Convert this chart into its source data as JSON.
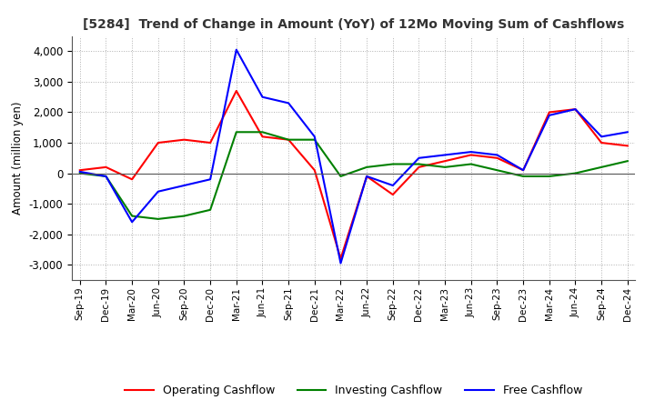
{
  "title": "[5284]  Trend of Change in Amount (YoY) of 12Mo Moving Sum of Cashflows",
  "ylabel": "Amount (million yen)",
  "x_labels": [
    "Sep-19",
    "Dec-19",
    "Mar-20",
    "Jun-20",
    "Sep-20",
    "Dec-20",
    "Mar-21",
    "Jun-21",
    "Sep-21",
    "Dec-21",
    "Mar-22",
    "Jun-22",
    "Sep-22",
    "Dec-22",
    "Mar-23",
    "Jun-23",
    "Sep-23",
    "Dec-23",
    "Mar-24",
    "Jun-24",
    "Sep-24",
    "Dec-24"
  ],
  "operating": [
    100,
    200,
    -200,
    1000,
    1100,
    1000,
    2700,
    1200,
    1100,
    100,
    -2800,
    -100,
    -700,
    200,
    400,
    600,
    500,
    100,
    2000,
    2100,
    1000,
    900
  ],
  "investing": [
    0,
    -100,
    -1400,
    -1500,
    -1400,
    -1200,
    1350,
    1350,
    1100,
    1100,
    -100,
    200,
    300,
    300,
    200,
    300,
    100,
    -100,
    -100,
    0,
    200,
    400
  ],
  "free": [
    50,
    -100,
    -1600,
    -600,
    -400,
    -200,
    4050,
    2500,
    2300,
    1200,
    -2950,
    -100,
    -400,
    500,
    600,
    700,
    600,
    100,
    1900,
    2100,
    1200,
    1350
  ],
  "ylim": [
    -3500,
    4500
  ],
  "yticks": [
    -3000,
    -2000,
    -1000,
    0,
    1000,
    2000,
    3000,
    4000
  ],
  "operating_color": "#ff0000",
  "investing_color": "#008000",
  "free_color": "#0000ff",
  "bg_color": "#ffffff",
  "grid_color": "#b0b0b0"
}
